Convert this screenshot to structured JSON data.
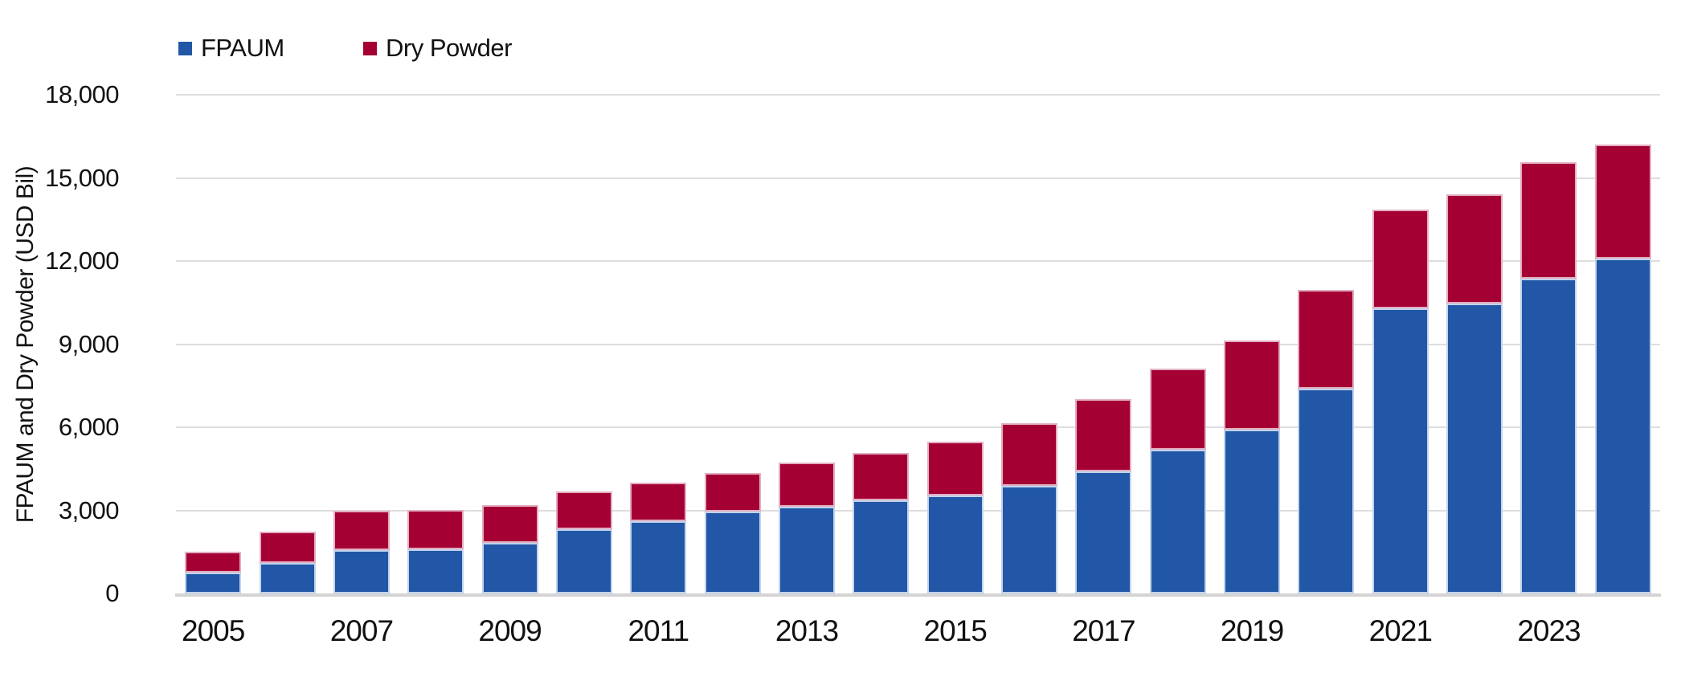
{
  "chart_data": {
    "type": "bar",
    "stacked": true,
    "title": "",
    "xlabel": "",
    "ylabel": "FPAUM and Dry Powder (USD Bil)",
    "ylim": [
      0,
      18000
    ],
    "ytick_interval": 3000,
    "ytick_labels": [
      "0",
      "3,000",
      "6,000",
      "9,000",
      "12,000",
      "15,000",
      "18,000"
    ],
    "grid": "horizontal",
    "legend_position": "top-left",
    "categories": [
      "2005",
      "2006",
      "2007",
      "2008",
      "2009",
      "2010",
      "2011",
      "2012",
      "2013",
      "2014",
      "2015",
      "2016",
      "2017",
      "2018",
      "2019",
      "2020",
      "2021",
      "2022",
      "2023",
      "2024"
    ],
    "x_axis_shown_labels": [
      "2005",
      "2007",
      "2009",
      "2011",
      "2013",
      "2015",
      "2017",
      "2019",
      "2021",
      "2023"
    ],
    "series": [
      {
        "name": "FPAUM",
        "color": "#2157A6",
        "values": [
          750,
          1100,
          1570,
          1600,
          1830,
          2330,
          2600,
          2950,
          3140,
          3360,
          3540,
          3890,
          4410,
          5190,
          5900,
          7400,
          10300,
          10470,
          11370,
          12100
        ]
      },
      {
        "name": "Dry Powder",
        "color": "#A50034",
        "values": [
          760,
          1130,
          1420,
          1420,
          1360,
          1340,
          1390,
          1390,
          1590,
          1710,
          1940,
          2260,
          2610,
          2930,
          3230,
          3560,
          3560,
          3940,
          4200,
          4100
        ]
      }
    ]
  },
  "colors": {
    "fpaum": "#2157A6",
    "dry_powder": "#A50034",
    "gridline": "#DEDEDE",
    "axis_line": "#D4D4D4",
    "text": "#111111"
  }
}
